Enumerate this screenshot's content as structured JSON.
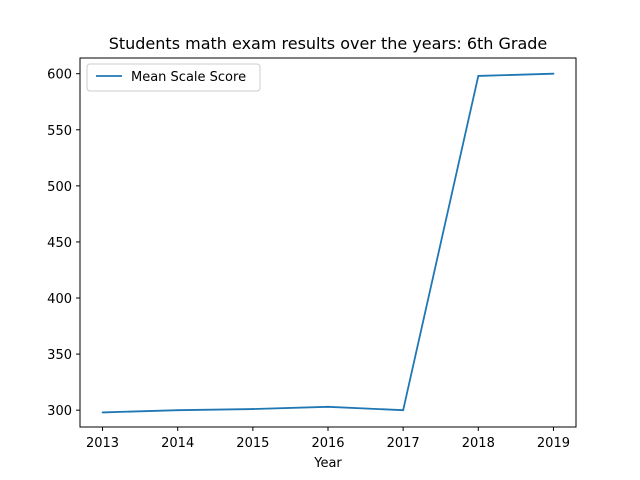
{
  "chart_data": {
    "type": "line",
    "title": "Students math exam results over the years: 6th Grade",
    "xlabel": "Year",
    "ylabel": "",
    "x": [
      2013,
      2014,
      2015,
      2016,
      2017,
      2018,
      2019
    ],
    "x_tick_labels": [
      "2013",
      "2014",
      "2015",
      "2016",
      "2017",
      "2018",
      "2019"
    ],
    "xlim": [
      2012.7,
      2019.3
    ],
    "ylim": [
      285,
      614
    ],
    "y_ticks": [
      300,
      350,
      400,
      450,
      500,
      550,
      600
    ],
    "y_tick_labels": [
      "300",
      "350",
      "400",
      "450",
      "500",
      "550",
      "600"
    ],
    "series": [
      {
        "name": "Mean Scale Score",
        "color": "#1f77b4",
        "values": [
          298,
          300,
          301,
          303,
          300,
          598,
          600
        ]
      }
    ],
    "legend_position": "top-left",
    "grid": false
  }
}
